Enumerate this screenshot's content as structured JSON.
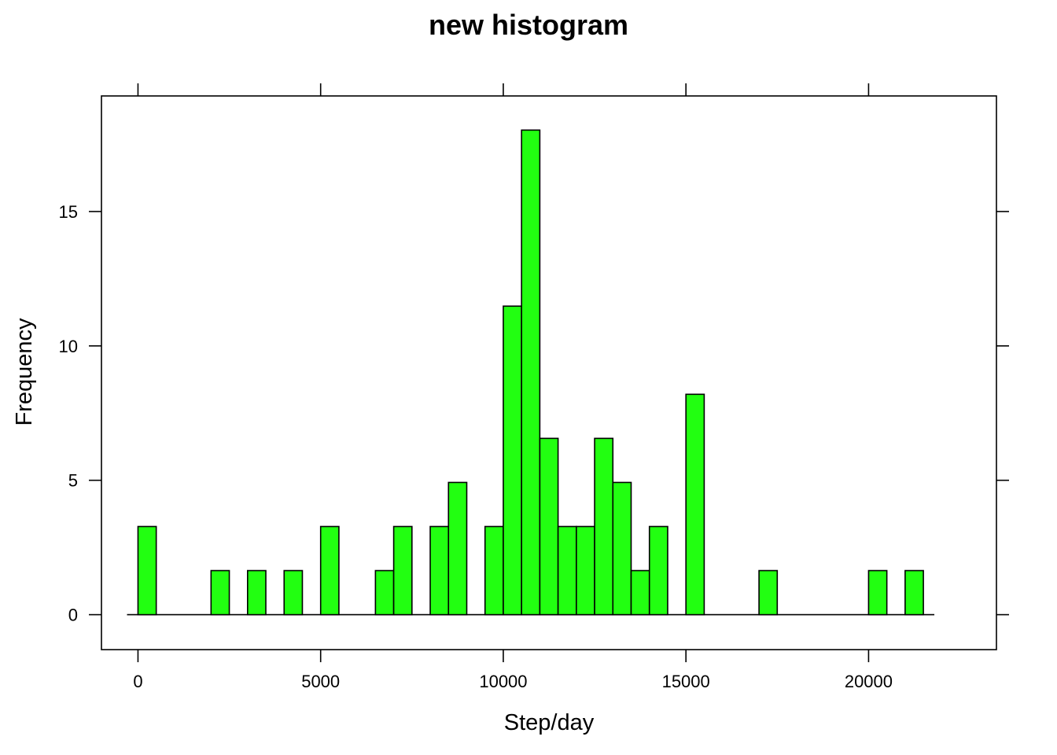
{
  "chart_data": {
    "type": "bar",
    "subtype": "histogram",
    "title": "new histogram",
    "xlabel": "Step/day",
    "ylabel": "Frequency",
    "bar_color": "#22ff11",
    "bin_width": 500,
    "xlim": [
      -1000,
      23500
    ],
    "ylim": [
      -1.3,
      19.3
    ],
    "x_ticks": [
      0,
      5000,
      10000,
      15000,
      20000
    ],
    "x_tick_labels": [
      "0",
      "5000",
      "10000",
      "15000",
      "20000"
    ],
    "y_ticks": [
      0,
      5,
      10,
      15
    ],
    "y_tick_labels": [
      "0",
      "5",
      "10",
      "15"
    ],
    "baseline_range": [
      -300,
      21800
    ],
    "bins": [
      {
        "start": 0,
        "value": 3.28
      },
      {
        "start": 2000,
        "value": 1.64
      },
      {
        "start": 3000,
        "value": 1.64
      },
      {
        "start": 4000,
        "value": 1.64
      },
      {
        "start": 5000,
        "value": 3.28
      },
      {
        "start": 6500,
        "value": 1.64
      },
      {
        "start": 7000,
        "value": 3.28
      },
      {
        "start": 8000,
        "value": 3.28
      },
      {
        "start": 8500,
        "value": 4.92
      },
      {
        "start": 9500,
        "value": 3.28
      },
      {
        "start": 10000,
        "value": 11.48
      },
      {
        "start": 10500,
        "value": 18.03
      },
      {
        "start": 11000,
        "value": 6.56
      },
      {
        "start": 11500,
        "value": 3.28
      },
      {
        "start": 12000,
        "value": 3.28
      },
      {
        "start": 12500,
        "value": 6.56
      },
      {
        "start": 13000,
        "value": 4.92
      },
      {
        "start": 13500,
        "value": 1.64
      },
      {
        "start": 14000,
        "value": 3.28
      },
      {
        "start": 15000,
        "value": 8.2
      },
      {
        "start": 17000,
        "value": 1.64
      },
      {
        "start": 20000,
        "value": 1.64
      },
      {
        "start": 21000,
        "value": 1.64
      }
    ]
  }
}
